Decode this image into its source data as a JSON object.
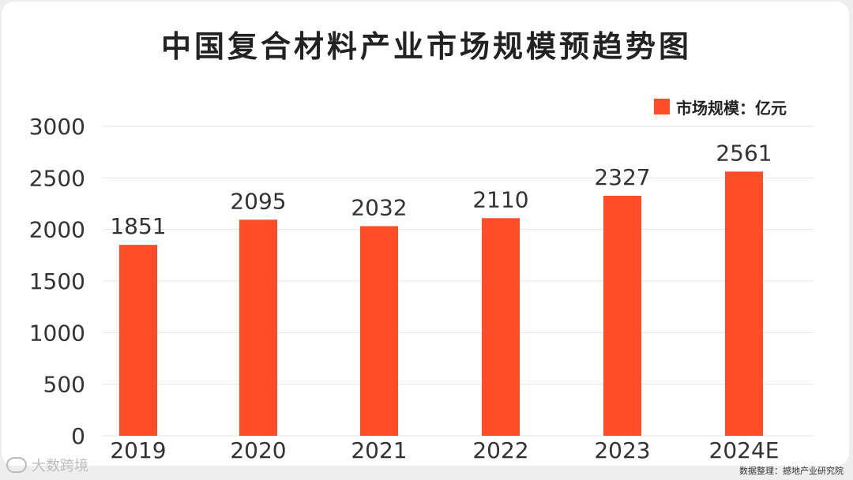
{
  "title": "中国复合材料产业市场规模预趋势图",
  "colors": {
    "bar": "#ff4d2a",
    "grid": "#e4e4e4",
    "text": "#333333"
  },
  "chart_data": {
    "type": "bar",
    "categories": [
      "2019",
      "2020",
      "2021",
      "2022",
      "2023",
      "2024E"
    ],
    "series": [
      {
        "name": "市场规模：亿元",
        "values": [
          1851,
          2095,
          2032,
          2110,
          2327,
          2561
        ]
      }
    ],
    "ylim": [
      0,
      3000
    ],
    "yticks": [
      0,
      500,
      1000,
      1500,
      2000,
      2500,
      3000
    ],
    "grid": true,
    "legend": "top-right",
    "data_labels": true
  },
  "watermark_text": "大数跨境",
  "source_note": "数据整理：撼地产业研究院"
}
